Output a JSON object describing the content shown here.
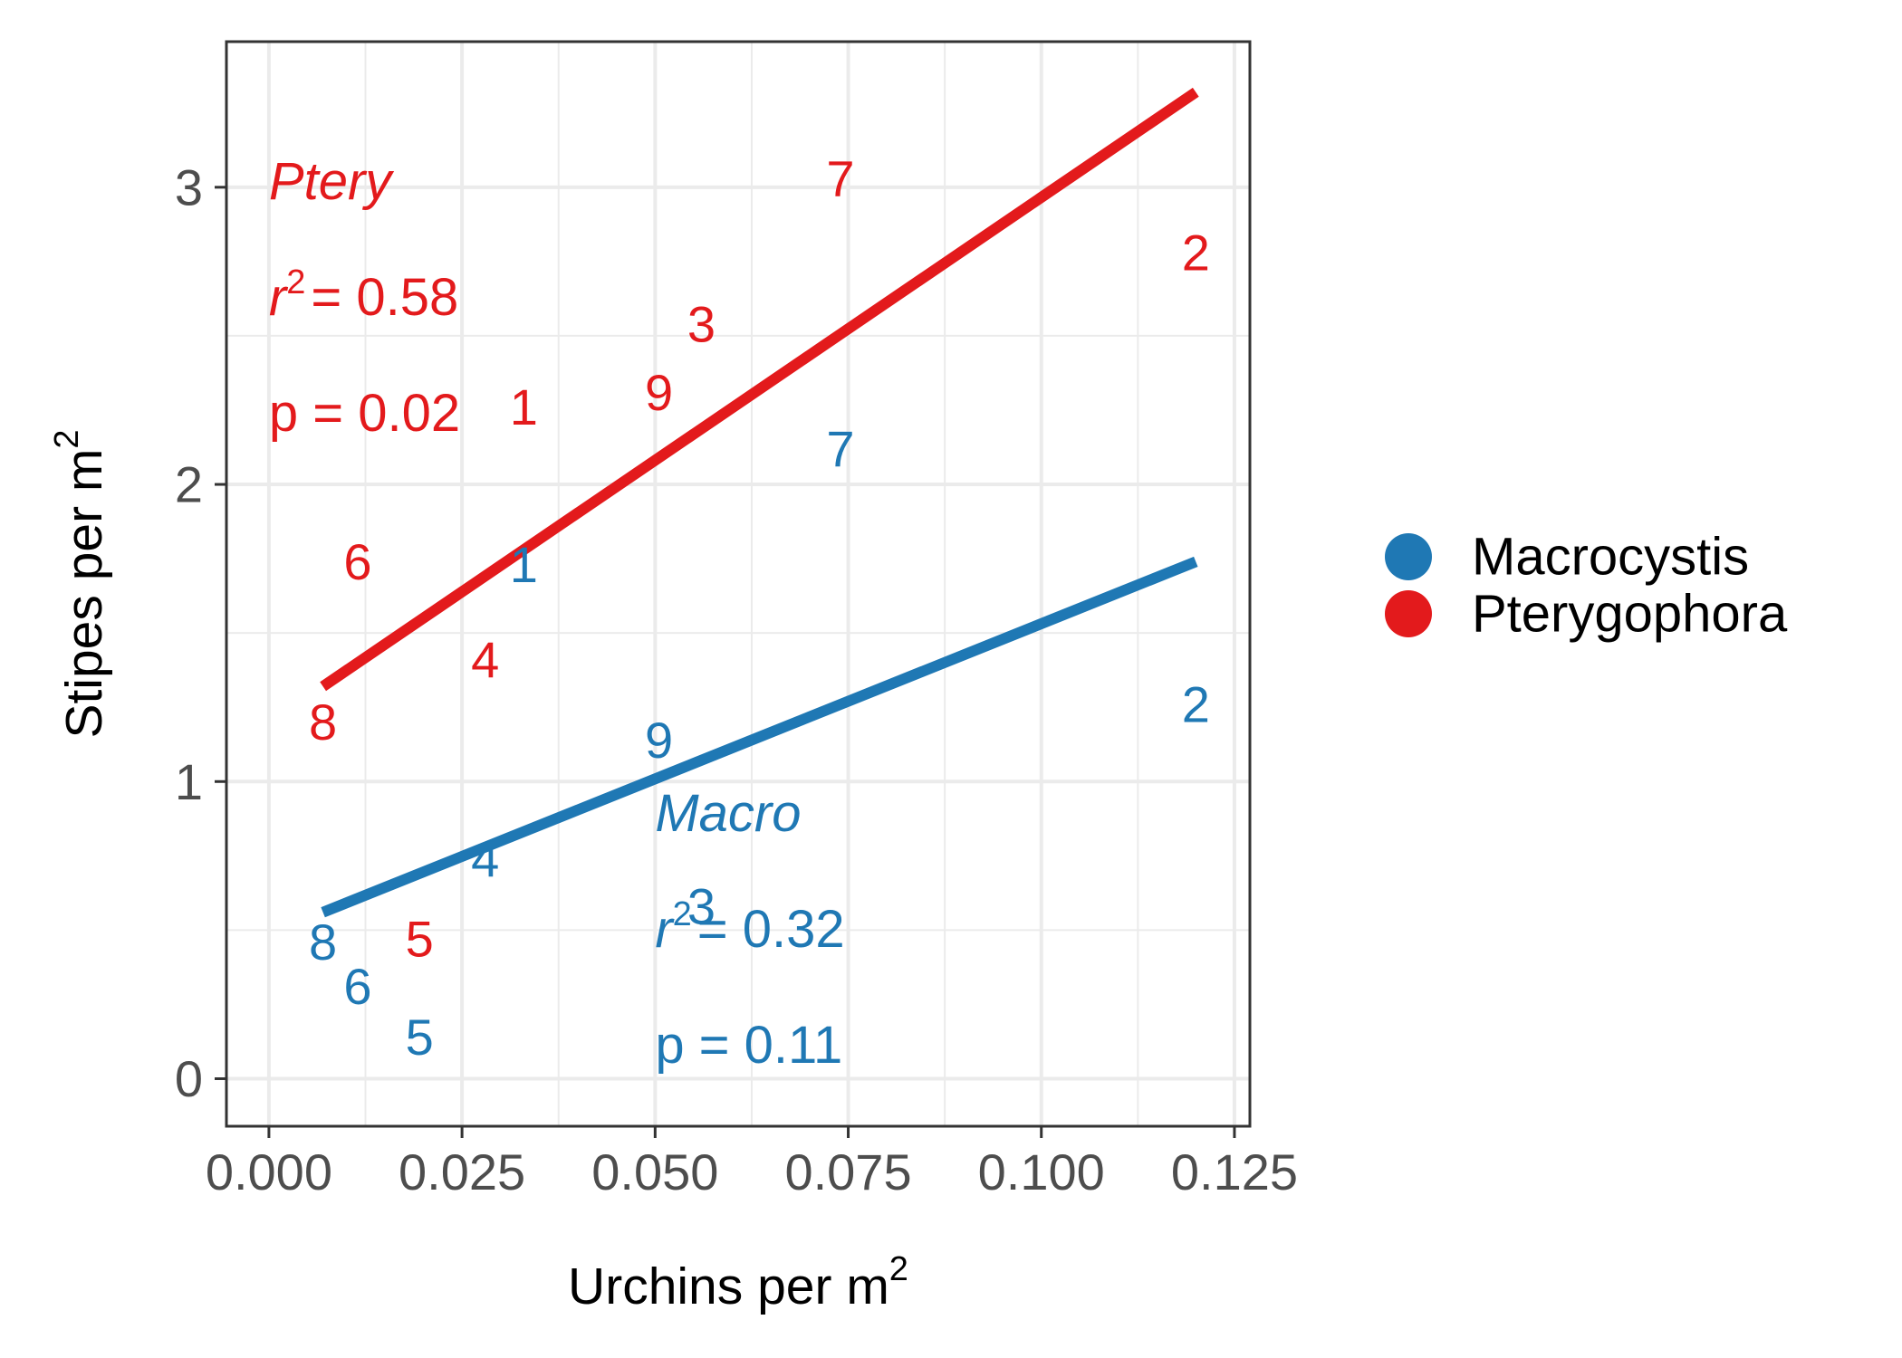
{
  "chart_data": {
    "type": "scatter",
    "xlabel": "Urchins per m",
    "xlabel_sup": "2",
    "ylabel": "Stipes per m",
    "ylabel_sup": "2",
    "xlim": [
      -0.0055,
      0.127
    ],
    "ylim": [
      -0.16,
      3.49
    ],
    "x_ticks": [
      0.0,
      0.025,
      0.05,
      0.075,
      0.1,
      0.125
    ],
    "x_tick_labels": [
      "0.000",
      "0.025",
      "0.050",
      "0.075",
      "0.100",
      "0.125"
    ],
    "y_ticks": [
      0,
      1,
      2,
      3
    ],
    "y_tick_labels": [
      "0",
      "1",
      "2",
      "3"
    ],
    "grid": true,
    "legend_position": "right",
    "series": [
      {
        "name": "Macrocystis",
        "color": "#1f78b4",
        "points": [
          {
            "label": "1",
            "x": 0.033,
            "y": 1.73
          },
          {
            "label": "2",
            "x": 0.12,
            "y": 1.26
          },
          {
            "label": "3",
            "x": 0.056,
            "y": 0.58
          },
          {
            "label": "4",
            "x": 0.028,
            "y": 0.74
          },
          {
            "label": "5",
            "x": 0.0195,
            "y": 0.14
          },
          {
            "label": "6",
            "x": 0.0115,
            "y": 0.31
          },
          {
            "label": "7",
            "x": 0.074,
            "y": 2.12
          },
          {
            "label": "8",
            "x": 0.007,
            "y": 0.46
          },
          {
            "label": "9",
            "x": 0.0505,
            "y": 1.14
          }
        ],
        "fit_line": {
          "x": [
            0.007,
            0.12
          ],
          "y": [
            0.56,
            1.74
          ]
        },
        "annotation": {
          "name": "Macro",
          "r2_prefix": "r",
          "r2_sup": "2",
          "r2_value": "= 0.32",
          "p_text": "p = 0.11"
        }
      },
      {
        "name": "Pterygophora",
        "color": "#e31a1c",
        "points": [
          {
            "label": "1",
            "x": 0.033,
            "y": 2.26
          },
          {
            "label": "2",
            "x": 0.12,
            "y": 2.78
          },
          {
            "label": "3",
            "x": 0.056,
            "y": 2.54
          },
          {
            "label": "4",
            "x": 0.028,
            "y": 1.41
          },
          {
            "label": "5",
            "x": 0.0195,
            "y": 0.47
          },
          {
            "label": "6",
            "x": 0.0115,
            "y": 1.74
          },
          {
            "label": "7",
            "x": 0.074,
            "y": 3.03
          },
          {
            "label": "8",
            "x": 0.007,
            "y": 1.2
          },
          {
            "label": "9",
            "x": 0.0505,
            "y": 2.31
          }
        ],
        "fit_line": {
          "x": [
            0.007,
            0.12
          ],
          "y": [
            1.32,
            3.32
          ]
        },
        "annotation": {
          "name": "Ptery",
          "r2_prefix": "r",
          "r2_sup": "2",
          "r2_value": "= 0.58",
          "p_text": "p = 0.02"
        }
      }
    ]
  }
}
